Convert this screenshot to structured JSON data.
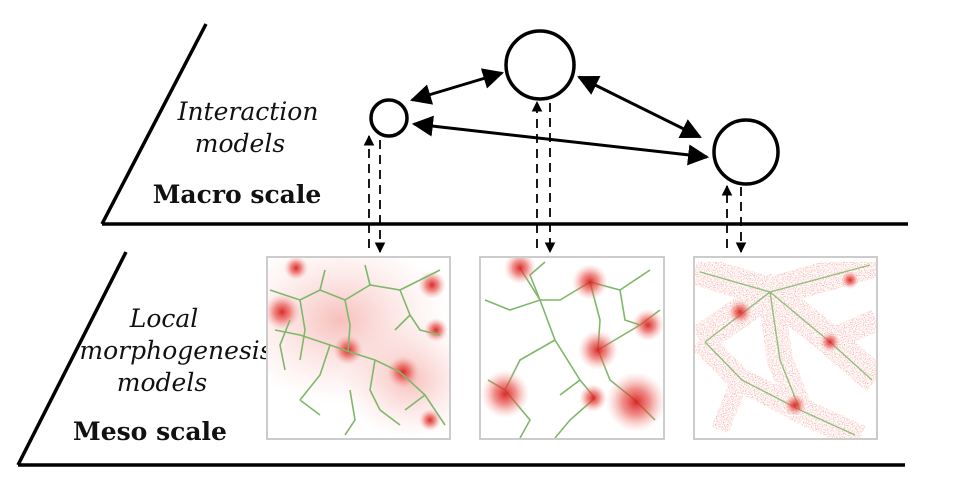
{
  "macro": {
    "title_line1": "Interaction",
    "title_line2": "models",
    "scale_label": "Macro scale"
  },
  "meso": {
    "title_line1": "Local",
    "title_line2": "morphogenesis",
    "title_line3": "models",
    "scale_label": "Meso scale"
  },
  "colors": {
    "line": "#000000",
    "network": "#7fb86a",
    "density": "#e0322f",
    "panel_border": "#cccccc"
  }
}
